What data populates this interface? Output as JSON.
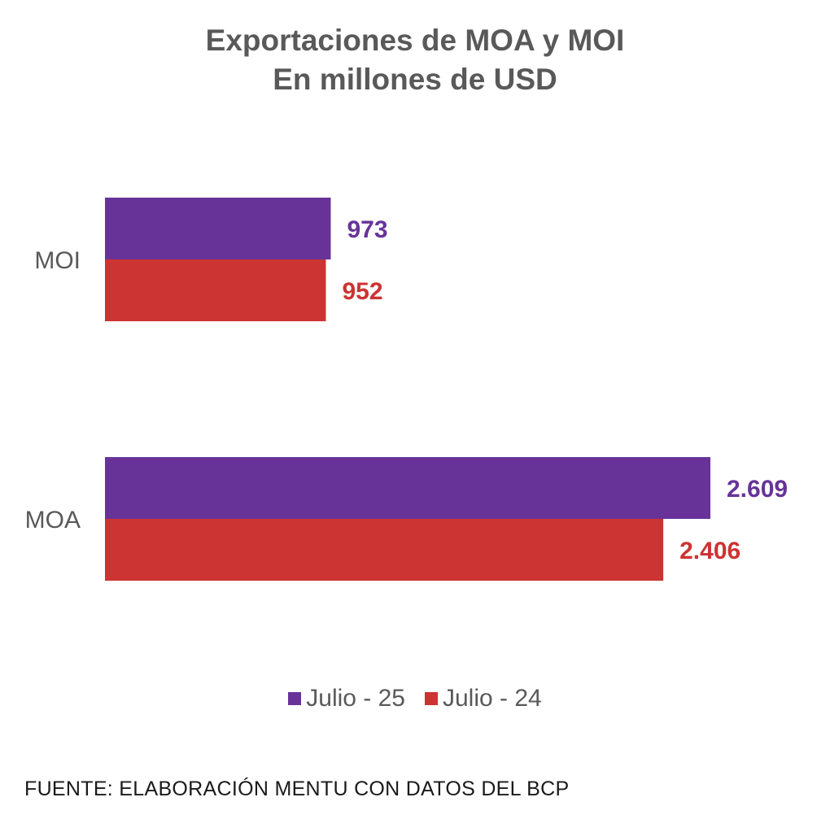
{
  "title_line1": "Exportaciones de MOA y MOI",
  "title_line2": "En millones de USD",
  "source": "FUENTE: ELABORACIÓN MENTU CON DATOS DEL BCP",
  "colors": {
    "julio25": "#673399",
    "julio24": "#cc3333"
  },
  "chart_data": {
    "type": "bar",
    "orientation": "horizontal",
    "title": "Exportaciones de MOA y MOI - En millones de USD",
    "categories": [
      "MOI",
      "MOA"
    ],
    "series": [
      {
        "name": "Julio - 25",
        "values": [
          973,
          2609
        ],
        "labels": [
          "973",
          "2.609"
        ],
        "color": "#673399"
      },
      {
        "name": "Julio - 24",
        "values": [
          952,
          2406
        ],
        "labels": [
          "952",
          "2.406"
        ],
        "color": "#cc3333"
      }
    ],
    "xlim": [
      0,
      2609
    ],
    "legend_position": "bottom",
    "grid": false
  }
}
